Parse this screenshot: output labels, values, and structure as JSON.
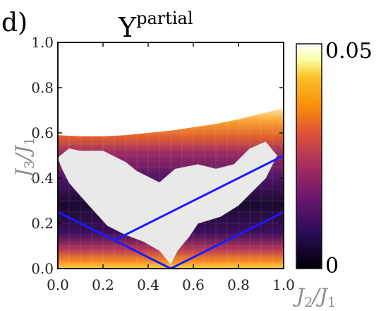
{
  "panel_label": "d)",
  "chart_data": {
    "type": "heatmap",
    "title": {
      "symbol": "Υ",
      "superscript": "partial"
    },
    "xlabel": {
      "main": "J",
      "sub1": "2",
      "slash": "/",
      "main2": "J",
      "sub2": "1"
    },
    "ylabel": {
      "main": "J",
      "sub1": "3",
      "slash": "/",
      "main2": "J",
      "sub2": "1"
    },
    "xlim": [
      0,
      1
    ],
    "ylim": [
      0,
      1
    ],
    "x_ticks": [
      "0.0",
      "0.2",
      "0.4",
      "0.6",
      "0.8",
      "1.0"
    ],
    "y_ticks": [
      "0.0",
      "0.2",
      "0.4",
      "0.6",
      "0.8",
      "1.0"
    ],
    "x_tick_values": [
      0,
      0.2,
      0.4,
      0.6,
      0.8,
      1.0
    ],
    "y_tick_values": [
      0,
      0.2,
      0.4,
      0.6,
      0.8,
      1.0
    ],
    "colorbar": {
      "min_label": "0",
      "max_label": "0.05",
      "min": 0,
      "max": 0.05
    },
    "region_upper_boundary": [
      [
        0,
        0.59
      ],
      [
        0.1,
        0.585
      ],
      [
        0.2,
        0.585
      ],
      [
        0.3,
        0.59
      ],
      [
        0.4,
        0.6
      ],
      [
        0.5,
        0.61
      ],
      [
        0.6,
        0.625
      ],
      [
        0.7,
        0.64
      ],
      [
        0.8,
        0.66
      ],
      [
        0.9,
        0.685
      ],
      [
        1.0,
        0.71
      ]
    ],
    "masked_region": [
      [
        0,
        0.49
      ],
      [
        0.05,
        0.53
      ],
      [
        0.1,
        0.52
      ],
      [
        0.2,
        0.52
      ],
      [
        0.3,
        0.47
      ],
      [
        0.35,
        0.43
      ],
      [
        0.45,
        0.38
      ],
      [
        0.52,
        0.44
      ],
      [
        0.62,
        0.46
      ],
      [
        0.7,
        0.44
      ],
      [
        0.78,
        0.46
      ],
      [
        0.85,
        0.53
      ],
      [
        0.92,
        0.56
      ],
      [
        0.97,
        0.5
      ],
      [
        0.92,
        0.4
      ],
      [
        0.85,
        0.33
      ],
      [
        0.8,
        0.28
      ],
      [
        0.72,
        0.23
      ],
      [
        0.62,
        0.2
      ],
      [
        0.58,
        0.14
      ],
      [
        0.53,
        0.08
      ],
      [
        0.5,
        0.02
      ],
      [
        0.45,
        0.08
      ],
      [
        0.38,
        0.12
      ],
      [
        0.3,
        0.15
      ],
      [
        0.22,
        0.19
      ],
      [
        0.12,
        0.3
      ],
      [
        0.05,
        0.38
      ],
      [
        0.02,
        0.44
      ]
    ],
    "lines": [
      {
        "color": "#1a1aff",
        "points": [
          [
            0,
            0.25
          ],
          [
            0.5,
            0
          ],
          [
            1,
            0.25
          ]
        ]
      },
      {
        "color": "#1a1aff",
        "points": [
          [
            0.25,
            0.125
          ],
          [
            1,
            0.5
          ]
        ]
      }
    ]
  }
}
